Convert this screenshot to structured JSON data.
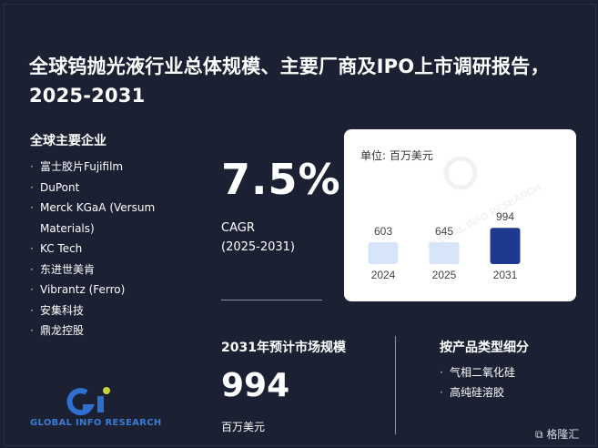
{
  "title": "全球钨抛光液行业总体规模、主要厂商及IPO上市调研报告，2025-2031",
  "companies": {
    "heading": "全球主要企业",
    "items": [
      "富士胶片Fujifilm",
      "DuPont",
      "Merck KGaA (Versum Materials)",
      "KC Tech",
      "东进世美肯",
      "Vibrantz (Ferro)",
      "安集科技",
      "鼎龙控股"
    ]
  },
  "cagr": {
    "value": "7.5%",
    "label_line1": "CAGR",
    "label_line2": "(2025-2031)"
  },
  "market": {
    "heading": "2031年预计市场规模",
    "value": "994",
    "unit": "百万美元"
  },
  "segments": {
    "heading": "按产品类型细分",
    "items": [
      "气相二氧化硅",
      "高纯硅溶胶"
    ]
  },
  "logo": {
    "text": "GLOBAL INFO RESEARCH"
  },
  "watermark": "GLOBAL INFO RESEARCH",
  "corner_brand": "格隆汇",
  "chart_data": {
    "type": "bar",
    "unit_label": "单位: 百万美元",
    "categories": [
      "2024",
      "2025",
      "2031"
    ],
    "values": [
      603,
      645,
      994
    ],
    "colors": [
      "#d6e6f8",
      "#d6e6f8",
      "#1d3a8f"
    ],
    "ylim": [
      0,
      1000
    ],
    "grid": false,
    "legend": "none"
  }
}
